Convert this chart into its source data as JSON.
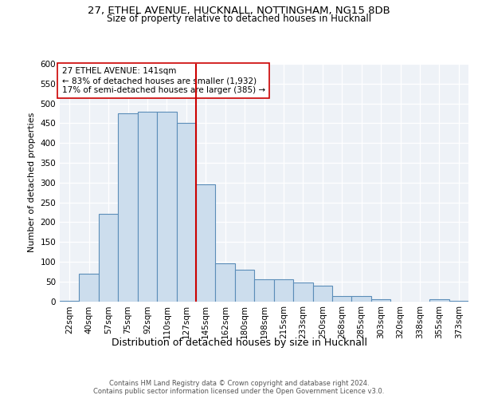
{
  "title_line1": "27, ETHEL AVENUE, HUCKNALL, NOTTINGHAM, NG15 8DB",
  "title_line2": "Size of property relative to detached houses in Hucknall",
  "xlabel": "Distribution of detached houses by size in Hucknall",
  "ylabel": "Number of detached properties",
  "bin_labels": [
    "22sqm",
    "40sqm",
    "57sqm",
    "75sqm",
    "92sqm",
    "110sqm",
    "127sqm",
    "145sqm",
    "162sqm",
    "180sqm",
    "198sqm",
    "215sqm",
    "233sqm",
    "250sqm",
    "268sqm",
    "285sqm",
    "303sqm",
    "320sqm",
    "338sqm",
    "355sqm",
    "373sqm"
  ],
  "bar_values": [
    2,
    70,
    220,
    475,
    480,
    480,
    450,
    295,
    95,
    80,
    55,
    55,
    48,
    40,
    13,
    13,
    5,
    0,
    0,
    5,
    2
  ],
  "bar_color": "#ccdded",
  "bar_edge_color": "#5b8db8",
  "vline_color": "#cc0000",
  "annotation_text": "27 ETHEL AVENUE: 141sqm\n← 83% of detached houses are smaller (1,932)\n17% of semi-detached houses are larger (385) →",
  "annotation_box_color": "#ffffff",
  "annotation_box_edge": "#cc0000",
  "ylim": [
    0,
    600
  ],
  "yticks": [
    0,
    50,
    100,
    150,
    200,
    250,
    300,
    350,
    400,
    450,
    500,
    550,
    600
  ],
  "background_color": "#eef2f7",
  "grid_color": "#ffffff",
  "footer_text": "Contains HM Land Registry data © Crown copyright and database right 2024.\nContains public sector information licensed under the Open Government Licence v3.0.",
  "title_fontsize": 9.5,
  "subtitle_fontsize": 8.5,
  "ylabel_fontsize": 8,
  "xlabel_fontsize": 9,
  "tick_fontsize": 7.5,
  "annotation_fontsize": 7.5,
  "footer_fontsize": 6
}
